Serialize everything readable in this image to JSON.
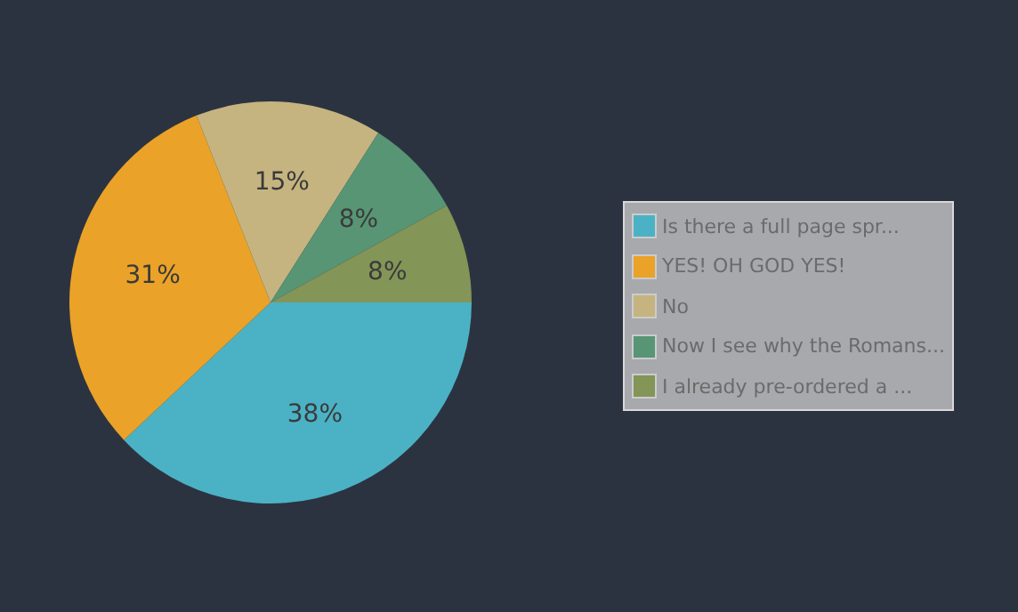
{
  "chart_data": {
    "type": "pie",
    "categories": [
      "Is there a full page spr...",
      "YES! OH GOD YES!",
      "No",
      "Now I see why the Romans...",
      "I already pre-ordered a ..."
    ],
    "values": [
      38,
      31,
      15,
      8,
      8
    ],
    "colors": [
      "#4bb2c5",
      "#eaa228",
      "#c5b47f",
      "#579575",
      "#839557"
    ],
    "value_labels": [
      "38%",
      "31%",
      "15%",
      "8%",
      "8%"
    ],
    "legend": "right"
  }
}
